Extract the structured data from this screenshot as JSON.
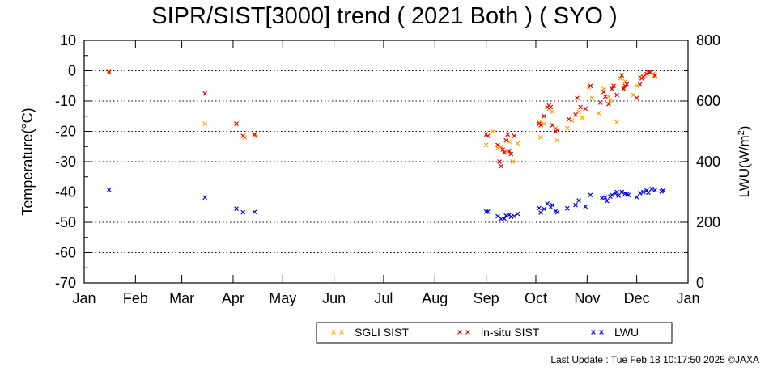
{
  "chart_data": {
    "type": "scatter",
    "title": "SIPR/SIST[3000] trend ( 2021 Both ) ( SYO )",
    "ylabel_left": "Temperature(°C)",
    "ylabel_right_prefix": "LWU(W/m",
    "ylabel_right_sup": "2",
    "ylabel_right_suffix": ")",
    "xlabel": "",
    "ylim_left": [
      -70,
      10
    ],
    "ylim_right": [
      0,
      800
    ],
    "yticks_left": [
      "10",
      "0",
      "-10",
      "-20",
      "-30",
      "-40",
      "-50",
      "-60",
      "-70"
    ],
    "yticks_right": [
      "800",
      "600",
      "400",
      "200",
      "0"
    ],
    "xticks": [
      "Jan",
      "Feb",
      "Mar",
      "Apr",
      "May",
      "Jun",
      "Jul",
      "Aug",
      "Sep",
      "Oct",
      "Nov",
      "Dec",
      "Jan"
    ],
    "xlim_days": [
      0,
      365
    ],
    "grid": "horizontal dotted",
    "legend_placement": "bottom-right",
    "series": [
      {
        "name": "SGLI SIST",
        "color": "#ffa500",
        "axis": "left",
        "marker": "x",
        "points": [
          [
            15,
            0
          ],
          [
            73,
            -17.5
          ],
          [
            97,
            -22
          ],
          [
            103,
            -21.5
          ],
          [
            243,
            -24.5
          ],
          [
            247,
            -20
          ],
          [
            250,
            -25.5
          ],
          [
            252,
            -25
          ],
          [
            256,
            -26.5
          ],
          [
            257,
            -23.5
          ],
          [
            259,
            -30
          ],
          [
            262,
            -24
          ],
          [
            275,
            -17
          ],
          [
            276,
            -22
          ],
          [
            278,
            -17.5
          ],
          [
            281,
            -12.5
          ],
          [
            283,
            -13.5
          ],
          [
            285,
            -19
          ],
          [
            286,
            -23
          ],
          [
            292,
            -19
          ],
          [
            295,
            -16.5
          ],
          [
            299,
            -13.5
          ],
          [
            301,
            -15.5
          ],
          [
            305,
            -5.5
          ],
          [
            307,
            -9
          ],
          [
            311,
            -14
          ],
          [
            314,
            -6
          ],
          [
            317,
            -8.5
          ],
          [
            318,
            -10
          ],
          [
            322,
            -17
          ],
          [
            324,
            -2.5
          ],
          [
            326,
            -5.5
          ],
          [
            327,
            -3.5
          ],
          [
            332,
            -8
          ],
          [
            334,
            -5
          ],
          [
            336,
            -2
          ],
          [
            339,
            -1.5
          ],
          [
            344,
            -1
          ],
          [
            345,
            -2
          ]
        ]
      },
      {
        "name": "in-situ SIST",
        "color": "#e60000",
        "axis": "left",
        "marker": "x",
        "points": [
          [
            15,
            -0.5
          ],
          [
            73,
            -7.5
          ],
          [
            92,
            -17.5
          ],
          [
            96,
            -21.5
          ],
          [
            103,
            -21
          ],
          [
            243,
            -21
          ],
          [
            244,
            -21.5
          ],
          [
            250,
            -24.5
          ],
          [
            251,
            -30
          ],
          [
            252,
            -31.5
          ],
          [
            253,
            -26
          ],
          [
            254,
            -27
          ],
          [
            255,
            -23
          ],
          [
            256,
            -21
          ],
          [
            257,
            -26.5
          ],
          [
            258,
            -27.5
          ],
          [
            260,
            -21.5
          ],
          [
            275,
            -17.5
          ],
          [
            276,
            -18
          ],
          [
            278,
            -15
          ],
          [
            280,
            -12
          ],
          [
            281,
            -11.5
          ],
          [
            282,
            -12
          ],
          [
            283,
            -18
          ],
          [
            285,
            -20
          ],
          [
            286,
            -19.5
          ],
          [
            293,
            -16
          ],
          [
            297,
            -14.5
          ],
          [
            298,
            -9
          ],
          [
            300,
            -12
          ],
          [
            303,
            -12.5
          ],
          [
            306,
            -5
          ],
          [
            312,
            -10.5
          ],
          [
            314,
            -7
          ],
          [
            315,
            -8.5
          ],
          [
            317,
            -11
          ],
          [
            319,
            -6
          ],
          [
            320,
            -5
          ],
          [
            322,
            -8
          ],
          [
            325,
            -1.5
          ],
          [
            326,
            -6
          ],
          [
            327,
            -5
          ],
          [
            328,
            -4.5
          ],
          [
            334,
            -9
          ],
          [
            336,
            -4.5
          ],
          [
            337,
            -2.5
          ],
          [
            338,
            -2
          ],
          [
            340,
            -1
          ],
          [
            341,
            -0.5
          ],
          [
            342,
            -0.5
          ],
          [
            345,
            -1.5
          ]
        ]
      },
      {
        "name": "LWU",
        "color": "#0000e6",
        "axis": "right",
        "marker": "x",
        "points": [
          [
            15,
            307
          ],
          [
            73,
            282
          ],
          [
            92,
            245
          ],
          [
            96,
            233
          ],
          [
            103,
            234
          ],
          [
            243,
            235
          ],
          [
            244,
            235
          ],
          [
            250,
            220
          ],
          [
            252,
            211
          ],
          [
            254,
            212
          ],
          [
            255,
            222
          ],
          [
            257,
            225
          ],
          [
            258,
            218
          ],
          [
            260,
            220
          ],
          [
            262,
            228
          ],
          [
            275,
            247
          ],
          [
            276,
            232
          ],
          [
            278,
            244
          ],
          [
            280,
            262
          ],
          [
            282,
            250
          ],
          [
            283,
            257
          ],
          [
            285,
            237
          ],
          [
            286,
            233
          ],
          [
            292,
            246
          ],
          [
            297,
            257
          ],
          [
            299,
            272
          ],
          [
            303,
            252
          ],
          [
            306,
            290
          ],
          [
            313,
            280
          ],
          [
            315,
            282
          ],
          [
            316,
            270
          ],
          [
            318,
            285
          ],
          [
            319,
            290
          ],
          [
            321,
            295
          ],
          [
            322,
            300
          ],
          [
            323,
            288
          ],
          [
            325,
            300
          ],
          [
            327,
            295
          ],
          [
            328,
            292
          ],
          [
            329,
            290
          ],
          [
            334,
            283
          ],
          [
            336,
            296
          ],
          [
            338,
            300
          ],
          [
            340,
            305
          ],
          [
            341,
            298
          ],
          [
            343,
            310
          ],
          [
            345,
            306
          ],
          [
            349,
            302
          ],
          [
            350,
            305
          ]
        ]
      }
    ]
  },
  "footer_text": "Last Update : Tue Feb 18 10:17:50 2025  ©JAXA"
}
